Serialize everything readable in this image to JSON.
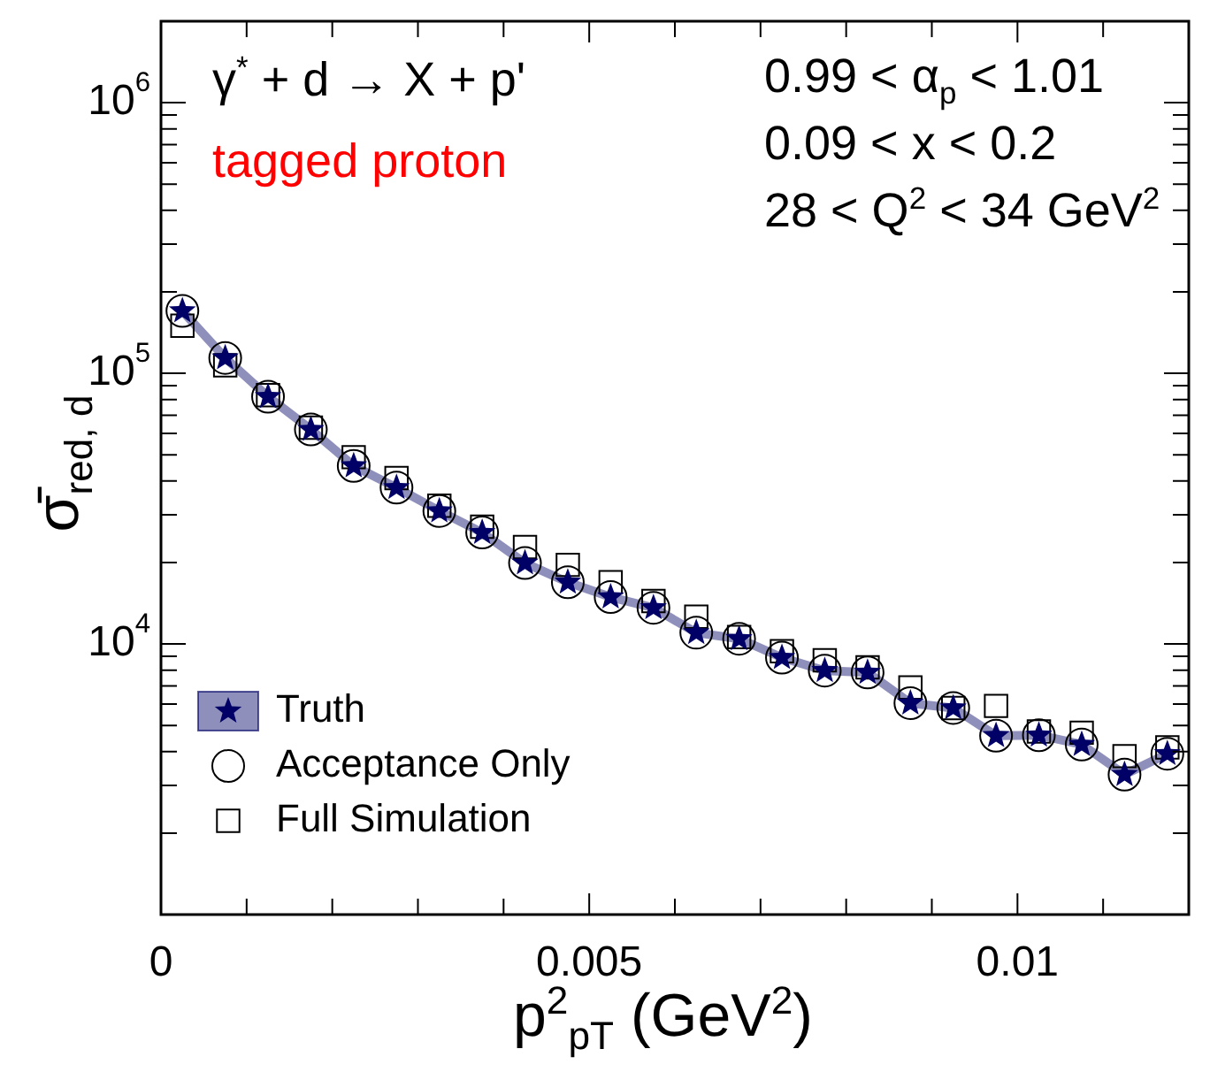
{
  "chart_data": {
    "type": "line",
    "xlabel": "p$^{2}$$_{pT}$ (GeV$^{2}$)",
    "ylabel": "σ̄$_{red, d}$",
    "annotations": [
      "γ$^{*}$ + d → X + p'",
      "tagged proton",
      "0.99 < α$_{p}$  < 1.01",
      "0.09 < x < 0.2",
      "28 < Q$^{2}$ < 34 GeV$^{2}$"
    ],
    "x": [
      0.00025,
      0.00075,
      0.00125,
      0.00175,
      0.00225,
      0.00275,
      0.00325,
      0.00375,
      0.00425,
      0.00475,
      0.00525,
      0.00575,
      0.00625,
      0.00675,
      0.00725,
      0.00775,
      0.00825,
      0.00875,
      0.00925,
      0.00975,
      0.01025,
      0.01075,
      0.01125,
      0.01175
    ],
    "series": [
      {
        "name": "Truth",
        "type": "line",
        "color": "#000066",
        "marker": "star",
        "values": [
          170000,
          114000,
          82000,
          62000,
          45500,
          37800,
          31000,
          25800,
          19900,
          16900,
          14900,
          13600,
          11000,
          10450,
          8900,
          7970,
          7850,
          6040,
          5800,
          4580,
          4600,
          4250,
          3290,
          3930
        ]
      },
      {
        "name": "Acceptance Only",
        "type": "scatter",
        "color": "#000000",
        "marker": "circle",
        "values": [
          170000,
          114000,
          82000,
          62000,
          45500,
          37800,
          31000,
          25800,
          19900,
          16900,
          14900,
          13600,
          11000,
          10450,
          8900,
          7970,
          7850,
          6040,
          5800,
          4580,
          4600,
          4250,
          3290,
          3930
        ]
      },
      {
        "name": "Full Simulation",
        "type": "scatter",
        "color": "#000000",
        "marker": "square",
        "values": [
          150000,
          107000,
          83000,
          63000,
          49000,
          41000,
          32400,
          27100,
          22800,
          19600,
          16900,
          14400,
          12600,
          10600,
          9400,
          8700,
          8200,
          6900,
          5800,
          5900,
          4750,
          4700,
          3850,
          4150
        ]
      }
    ],
    "xlim": [
      0,
      0.012
    ],
    "xticks": [
      0,
      {
        "value": 0.001,
        "label": null
      },
      {
        "value": 0.002,
        "label": null
      },
      {
        "value": 0.003,
        "label": null
      },
      {
        "value": 0.004,
        "label": null
      },
      0.005,
      {
        "value": 0.006,
        "label": null
      },
      {
        "value": 0.007,
        "label": null
      },
      {
        "value": 0.008,
        "label": null
      },
      {
        "value": 0.009,
        "label": null
      },
      0.01,
      {
        "value": 0.011,
        "label": null
      }
    ],
    "log": "y",
    "ylim": [
      1000,
      2000000
    ],
    "yticks": [
      {
        "value": 2000,
        "label": null
      },
      {
        "value": 3000,
        "label": null
      },
      {
        "value": 4000,
        "label": null
      },
      {
        "value": 5000,
        "label": null
      },
      {
        "value": 6000,
        "label": null
      },
      {
        "value": 7000,
        "label": null
      },
      {
        "value": 8000,
        "label": null
      },
      {
        "value": 9000,
        "label": null
      },
      {
        "value": 10000,
        "label": "10$^{4}$"
      },
      {
        "value": 20000,
        "label": null
      },
      {
        "value": 30000,
        "label": null
      },
      {
        "value": 40000,
        "label": null
      },
      {
        "value": 50000,
        "label": null
      },
      {
        "value": 60000,
        "label": null
      },
      {
        "value": 70000,
        "label": null
      },
      {
        "value": 80000,
        "label": null
      },
      {
        "value": 90000,
        "label": null
      },
      {
        "value": 100000,
        "label": "10$^{5}$"
      },
      {
        "value": 200000,
        "label": null
      },
      {
        "value": 300000,
        "label": null
      },
      {
        "value": 400000,
        "label": null
      },
      {
        "value": 500000,
        "label": null
      },
      {
        "value": 600000,
        "label": null
      },
      {
        "value": 700000,
        "label": null
      },
      {
        "value": 800000,
        "label": null
      },
      {
        "value": 900000,
        "label": null
      },
      {
        "value": 1000000,
        "label": "10$^{6}$"
      }
    ],
    "grid": false,
    "legend": "bottom left"
  }
}
